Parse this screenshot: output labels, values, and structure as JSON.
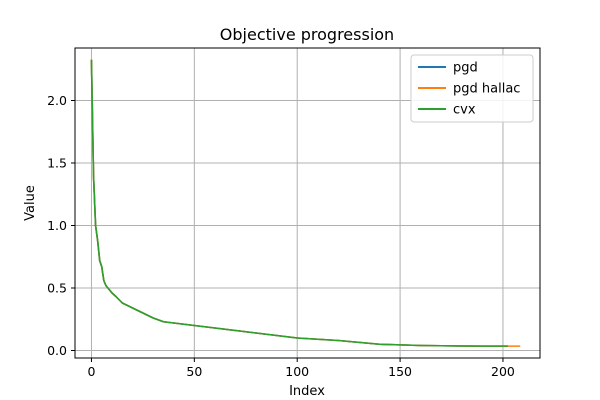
{
  "chart_data": {
    "type": "line",
    "title": "Objective progression",
    "xlabel": "Index",
    "ylabel": "Value",
    "xlim": [
      -8,
      218
    ],
    "ylim": [
      -0.06,
      2.42
    ],
    "xticks": [
      0,
      50,
      100,
      150,
      200
    ],
    "xtick_labels": [
      "0",
      "50",
      "100",
      "150",
      "200"
    ],
    "yticks": [
      0.0,
      0.5,
      1.0,
      1.5,
      2.0
    ],
    "ytick_labels": [
      "0.0",
      "0.5",
      "1.0",
      "1.5",
      "2.0"
    ],
    "grid": true,
    "legend_position": "top-right",
    "series": [
      {
        "name": "pgd",
        "color": "#1f77b4",
        "x": [
          0,
          1,
          2,
          3,
          4,
          5,
          6,
          7,
          8,
          10,
          12,
          15,
          20,
          25,
          30,
          35,
          40,
          50,
          60,
          70,
          80,
          90,
          100,
          110,
          120,
          130,
          140,
          150,
          160,
          170,
          180,
          190,
          200,
          202
        ],
        "y": [
          2.32,
          1.4,
          1.0,
          0.88,
          0.72,
          0.67,
          0.56,
          0.52,
          0.5,
          0.46,
          0.43,
          0.38,
          0.34,
          0.3,
          0.26,
          0.23,
          0.22,
          0.2,
          0.18,
          0.16,
          0.14,
          0.12,
          0.1,
          0.09,
          0.08,
          0.065,
          0.05,
          0.045,
          0.04,
          0.038,
          0.036,
          0.035,
          0.035,
          0.035
        ]
      },
      {
        "name": "pgd hallac",
        "color": "#ff7f0e",
        "x": [
          0,
          1,
          2,
          3,
          4,
          5,
          6,
          7,
          8,
          10,
          12,
          15,
          20,
          25,
          30,
          35,
          40,
          50,
          60,
          70,
          80,
          90,
          100,
          110,
          120,
          130,
          140,
          150,
          160,
          170,
          180,
          190,
          200,
          208
        ],
        "y": [
          2.32,
          1.4,
          1.0,
          0.88,
          0.72,
          0.67,
          0.56,
          0.52,
          0.5,
          0.46,
          0.43,
          0.38,
          0.34,
          0.3,
          0.26,
          0.23,
          0.22,
          0.2,
          0.18,
          0.16,
          0.14,
          0.12,
          0.1,
          0.09,
          0.08,
          0.065,
          0.05,
          0.045,
          0.04,
          0.038,
          0.036,
          0.035,
          0.035,
          0.035
        ]
      },
      {
        "name": "cvx",
        "color": "#2ca02c",
        "x": [
          0,
          1,
          2,
          3,
          4,
          5,
          6,
          7,
          8,
          10,
          12,
          15,
          20,
          25,
          30,
          35,
          40,
          50,
          60,
          70,
          80,
          90,
          100,
          110,
          120,
          130,
          140,
          150,
          160,
          170,
          180,
          190,
          200,
          202
        ],
        "y": [
          2.32,
          1.4,
          1.0,
          0.88,
          0.72,
          0.67,
          0.56,
          0.52,
          0.5,
          0.46,
          0.43,
          0.38,
          0.34,
          0.3,
          0.26,
          0.23,
          0.22,
          0.2,
          0.18,
          0.16,
          0.14,
          0.12,
          0.1,
          0.09,
          0.08,
          0.065,
          0.05,
          0.045,
          0.04,
          0.038,
          0.036,
          0.035,
          0.035,
          0.035
        ]
      }
    ]
  }
}
